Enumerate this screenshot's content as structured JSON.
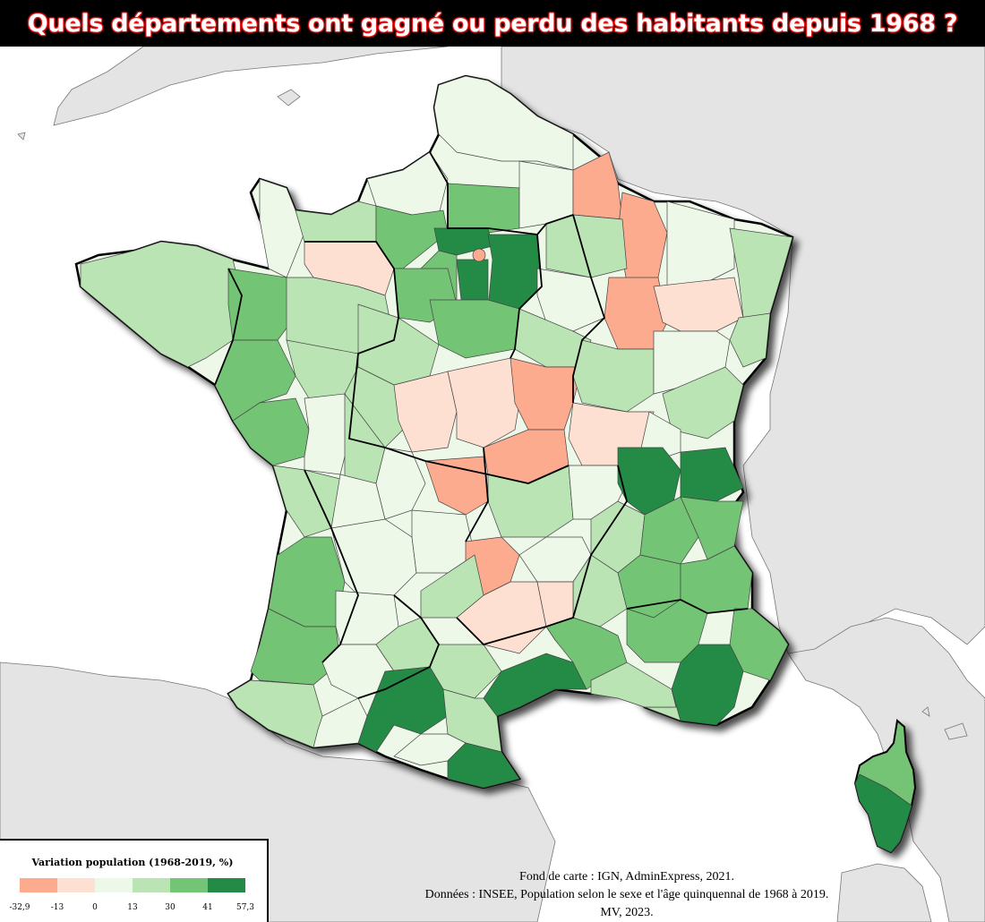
{
  "title": "Quels départements ont gagné ou perdu des habitants depuis 1968 ?",
  "legend": {
    "title": "Variation population (1968-2019, %)",
    "colors": [
      "#fcab8f",
      "#fee0d2",
      "#edf8e9",
      "#bae4b3",
      "#74c476",
      "#238b45"
    ],
    "breaks": [
      "-32,9",
      "-13",
      "0",
      "13",
      "30",
      "41",
      "57,3"
    ]
  },
  "source": {
    "line1": "Fond de carte : IGN, AdminExpress, 2021.",
    "line2": "Données : INSEE, Population selon le sexe et l'âge quinquennal de 1968 à 2019.",
    "line3": "MV, 2023."
  }
}
